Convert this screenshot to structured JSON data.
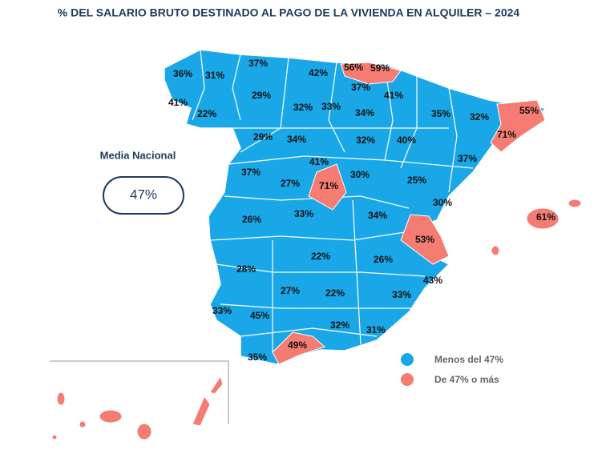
{
  "title": "% DEL SALARIO BRUTO DESTINADO AL PAGO DE LA VIVIENDA EN ALQUILER – 2024",
  "average": {
    "label": "Media Nacional",
    "value": "47%"
  },
  "legend": [
    {
      "label": "Menos del 47%",
      "color": "#1aa7e8",
      "regions": [
        "36%",
        "31%",
        "37%",
        "42%",
        "37%",
        "41%",
        "29%",
        "32%",
        "33%",
        "41%",
        "22%",
        "34%",
        "35%",
        "32%",
        "29%",
        "34%",
        "32%",
        "40%",
        "37%",
        "41%",
        "30%",
        "37%",
        "27%",
        "25%",
        "30%",
        "26%",
        "33%",
        "34%",
        "22%",
        "26%",
        "43%",
        "28%",
        "27%",
        "22%",
        "33%",
        "33%",
        "45%",
        "32%",
        "31%",
        "35%"
      ]
    },
    {
      "label": "De 47% o más",
      "color": "#f47c72",
      "regions": [
        "56%",
        "59%",
        "55%",
        "71%",
        "71%",
        "61%",
        "53%",
        "49%"
      ]
    }
  ]
}
